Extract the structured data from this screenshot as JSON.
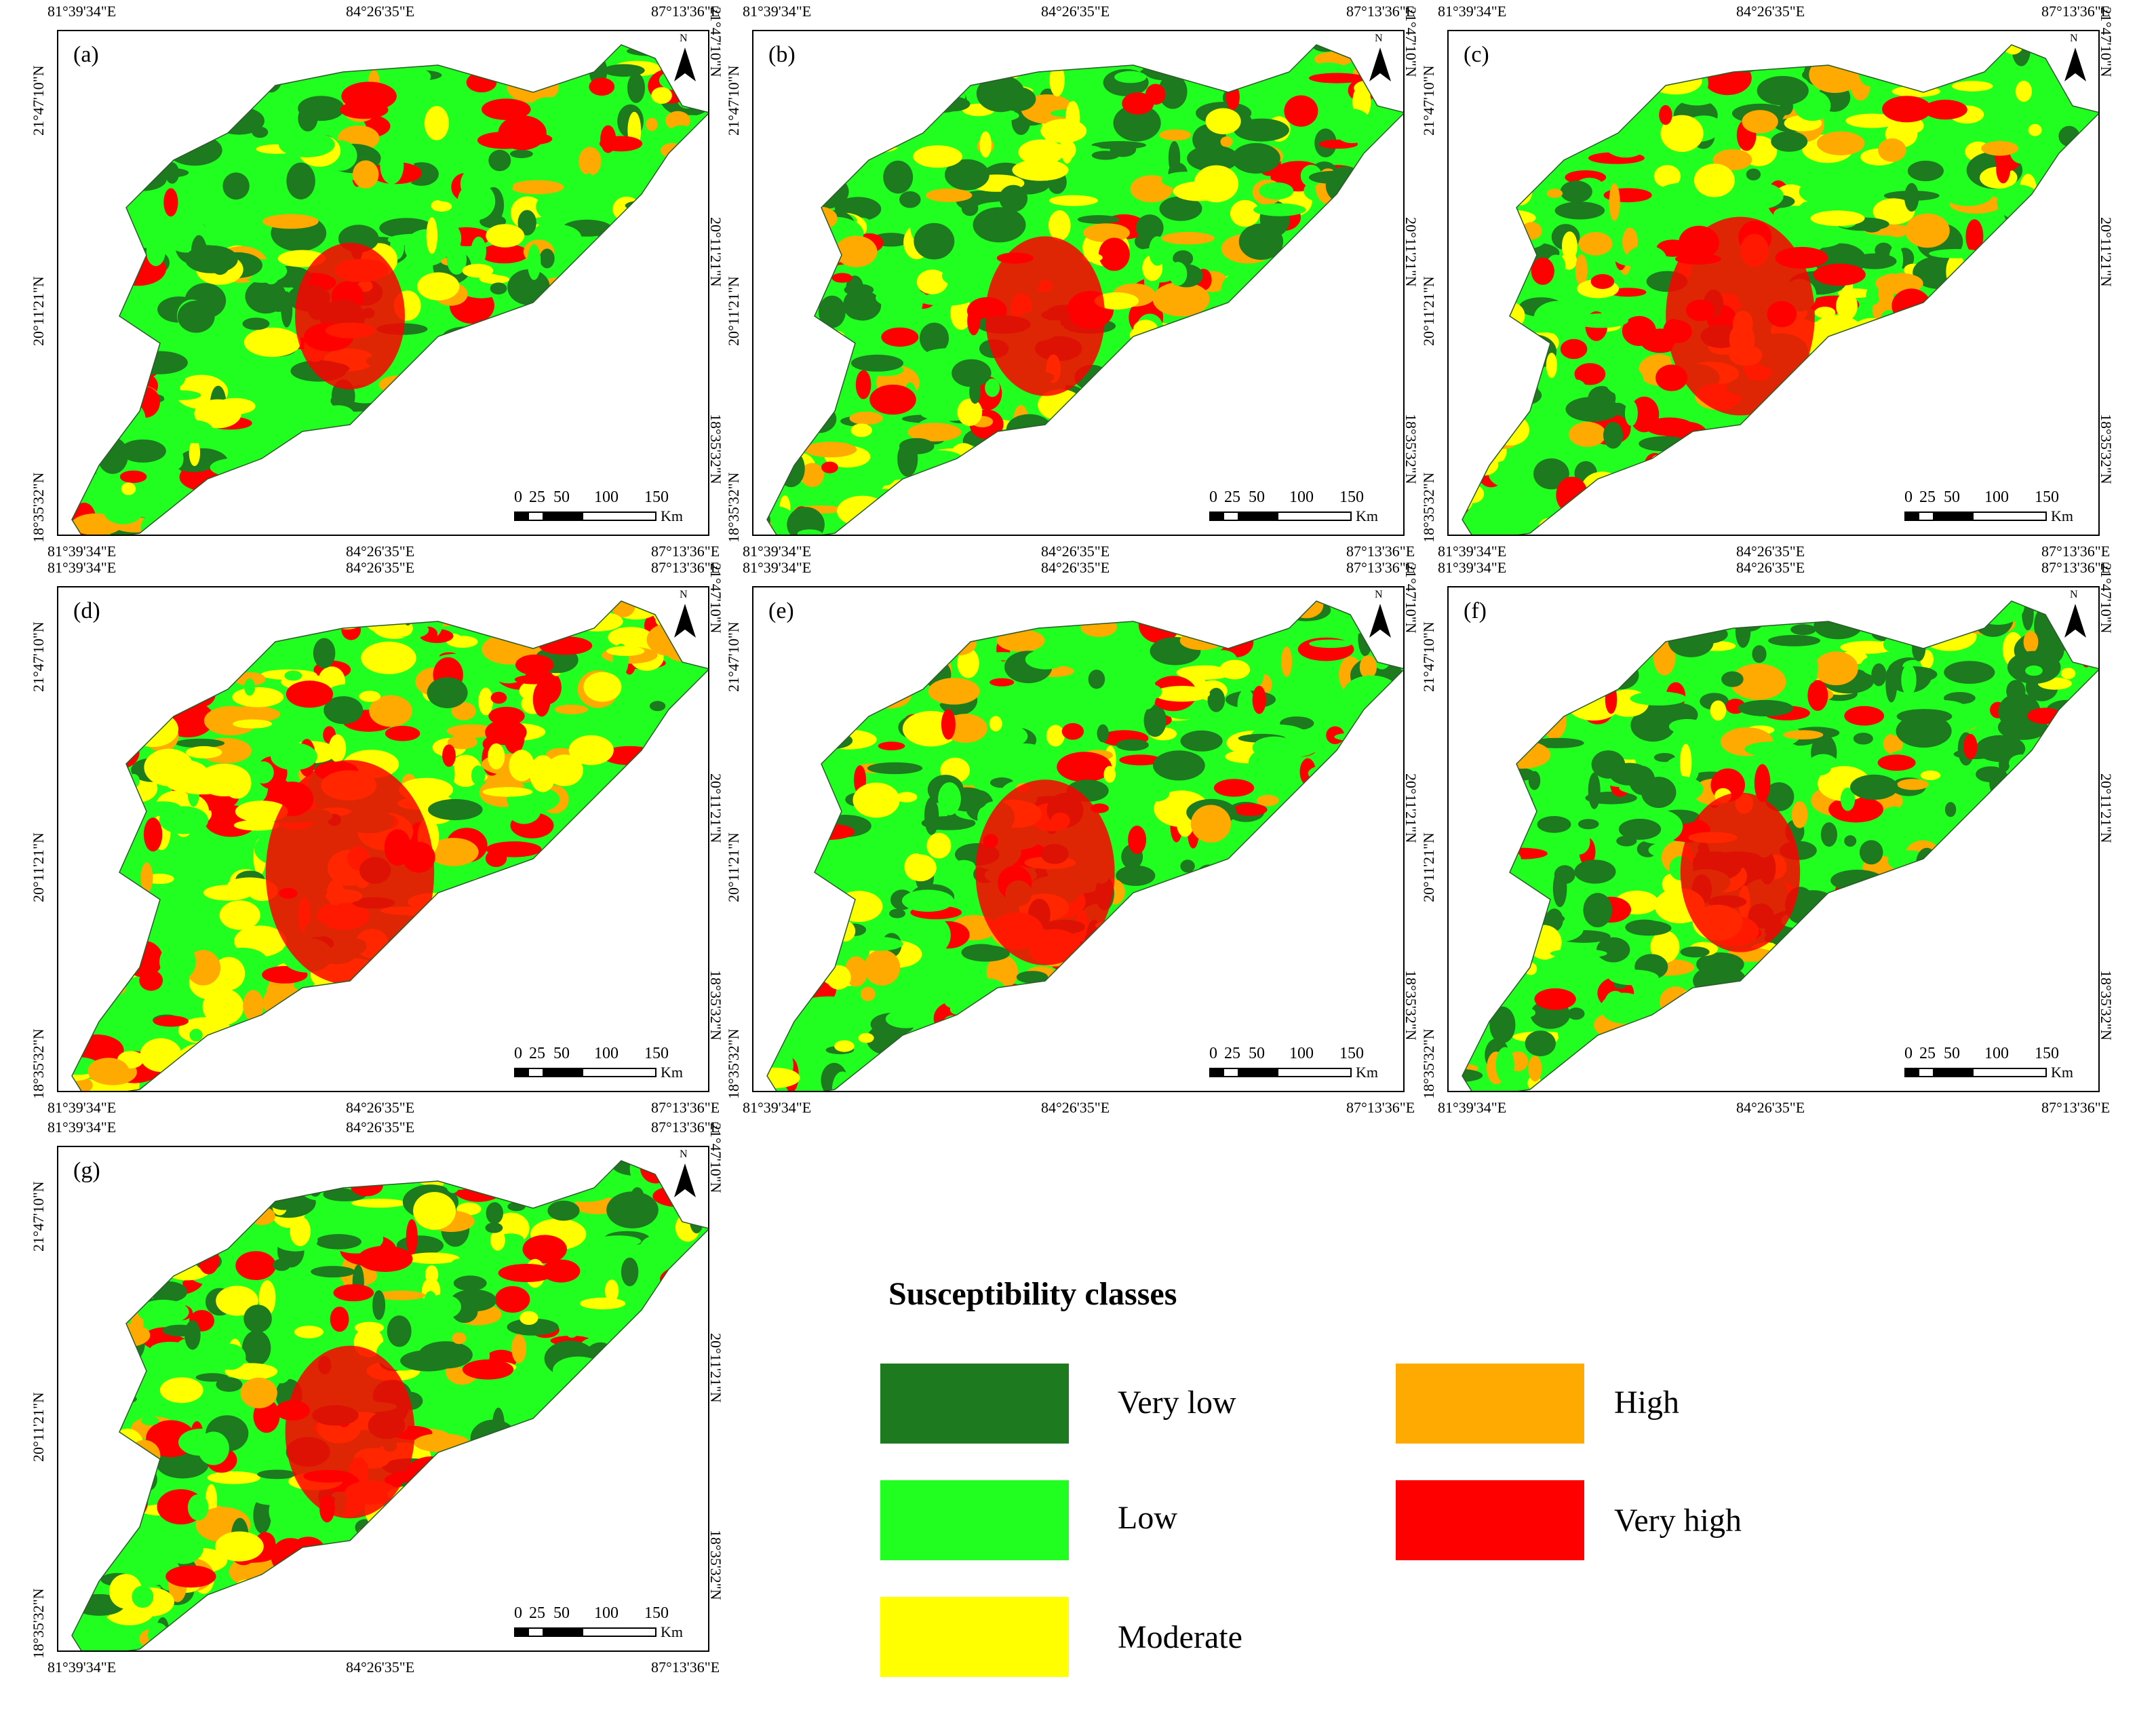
{
  "coords": {
    "lon": [
      "81°39'34\"E",
      "84°26'35\"E",
      "87°13'36\"E"
    ],
    "lat": [
      "21°47'10\"N",
      "20°11'21\"N",
      "18°35'32\"N"
    ]
  },
  "north_label": "N",
  "scale": {
    "ticks": [
      "0",
      "25",
      "50",
      "100",
      "150"
    ],
    "unit": "Km"
  },
  "panels": [
    {
      "label": "(a)",
      "mix": [
        0.38,
        0.3,
        0.14,
        0.08,
        0.1
      ]
    },
    {
      "label": "(b)",
      "mix": [
        0.3,
        0.32,
        0.16,
        0.1,
        0.12
      ]
    },
    {
      "label": "(c)",
      "mix": [
        0.2,
        0.28,
        0.2,
        0.14,
        0.18
      ]
    },
    {
      "label": "(d)",
      "mix": [
        0.06,
        0.24,
        0.34,
        0.14,
        0.22
      ]
    },
    {
      "label": "(e)",
      "mix": [
        0.28,
        0.3,
        0.16,
        0.1,
        0.16
      ]
    },
    {
      "label": "(f)",
      "mix": [
        0.4,
        0.24,
        0.14,
        0.1,
        0.12
      ]
    },
    {
      "label": "(g)",
      "mix": [
        0.26,
        0.32,
        0.16,
        0.12,
        0.14
      ]
    }
  ],
  "legend": {
    "title": "Susceptibility classes",
    "classes": [
      {
        "label": "Very low",
        "color": "#1e7a1e"
      },
      {
        "label": "Low",
        "color": "#21ff21"
      },
      {
        "label": "Moderate",
        "color": "#ffff00"
      },
      {
        "label": "High",
        "color": "#ffaa00"
      },
      {
        "label": "Very high",
        "color": "#ff0000"
      }
    ]
  }
}
